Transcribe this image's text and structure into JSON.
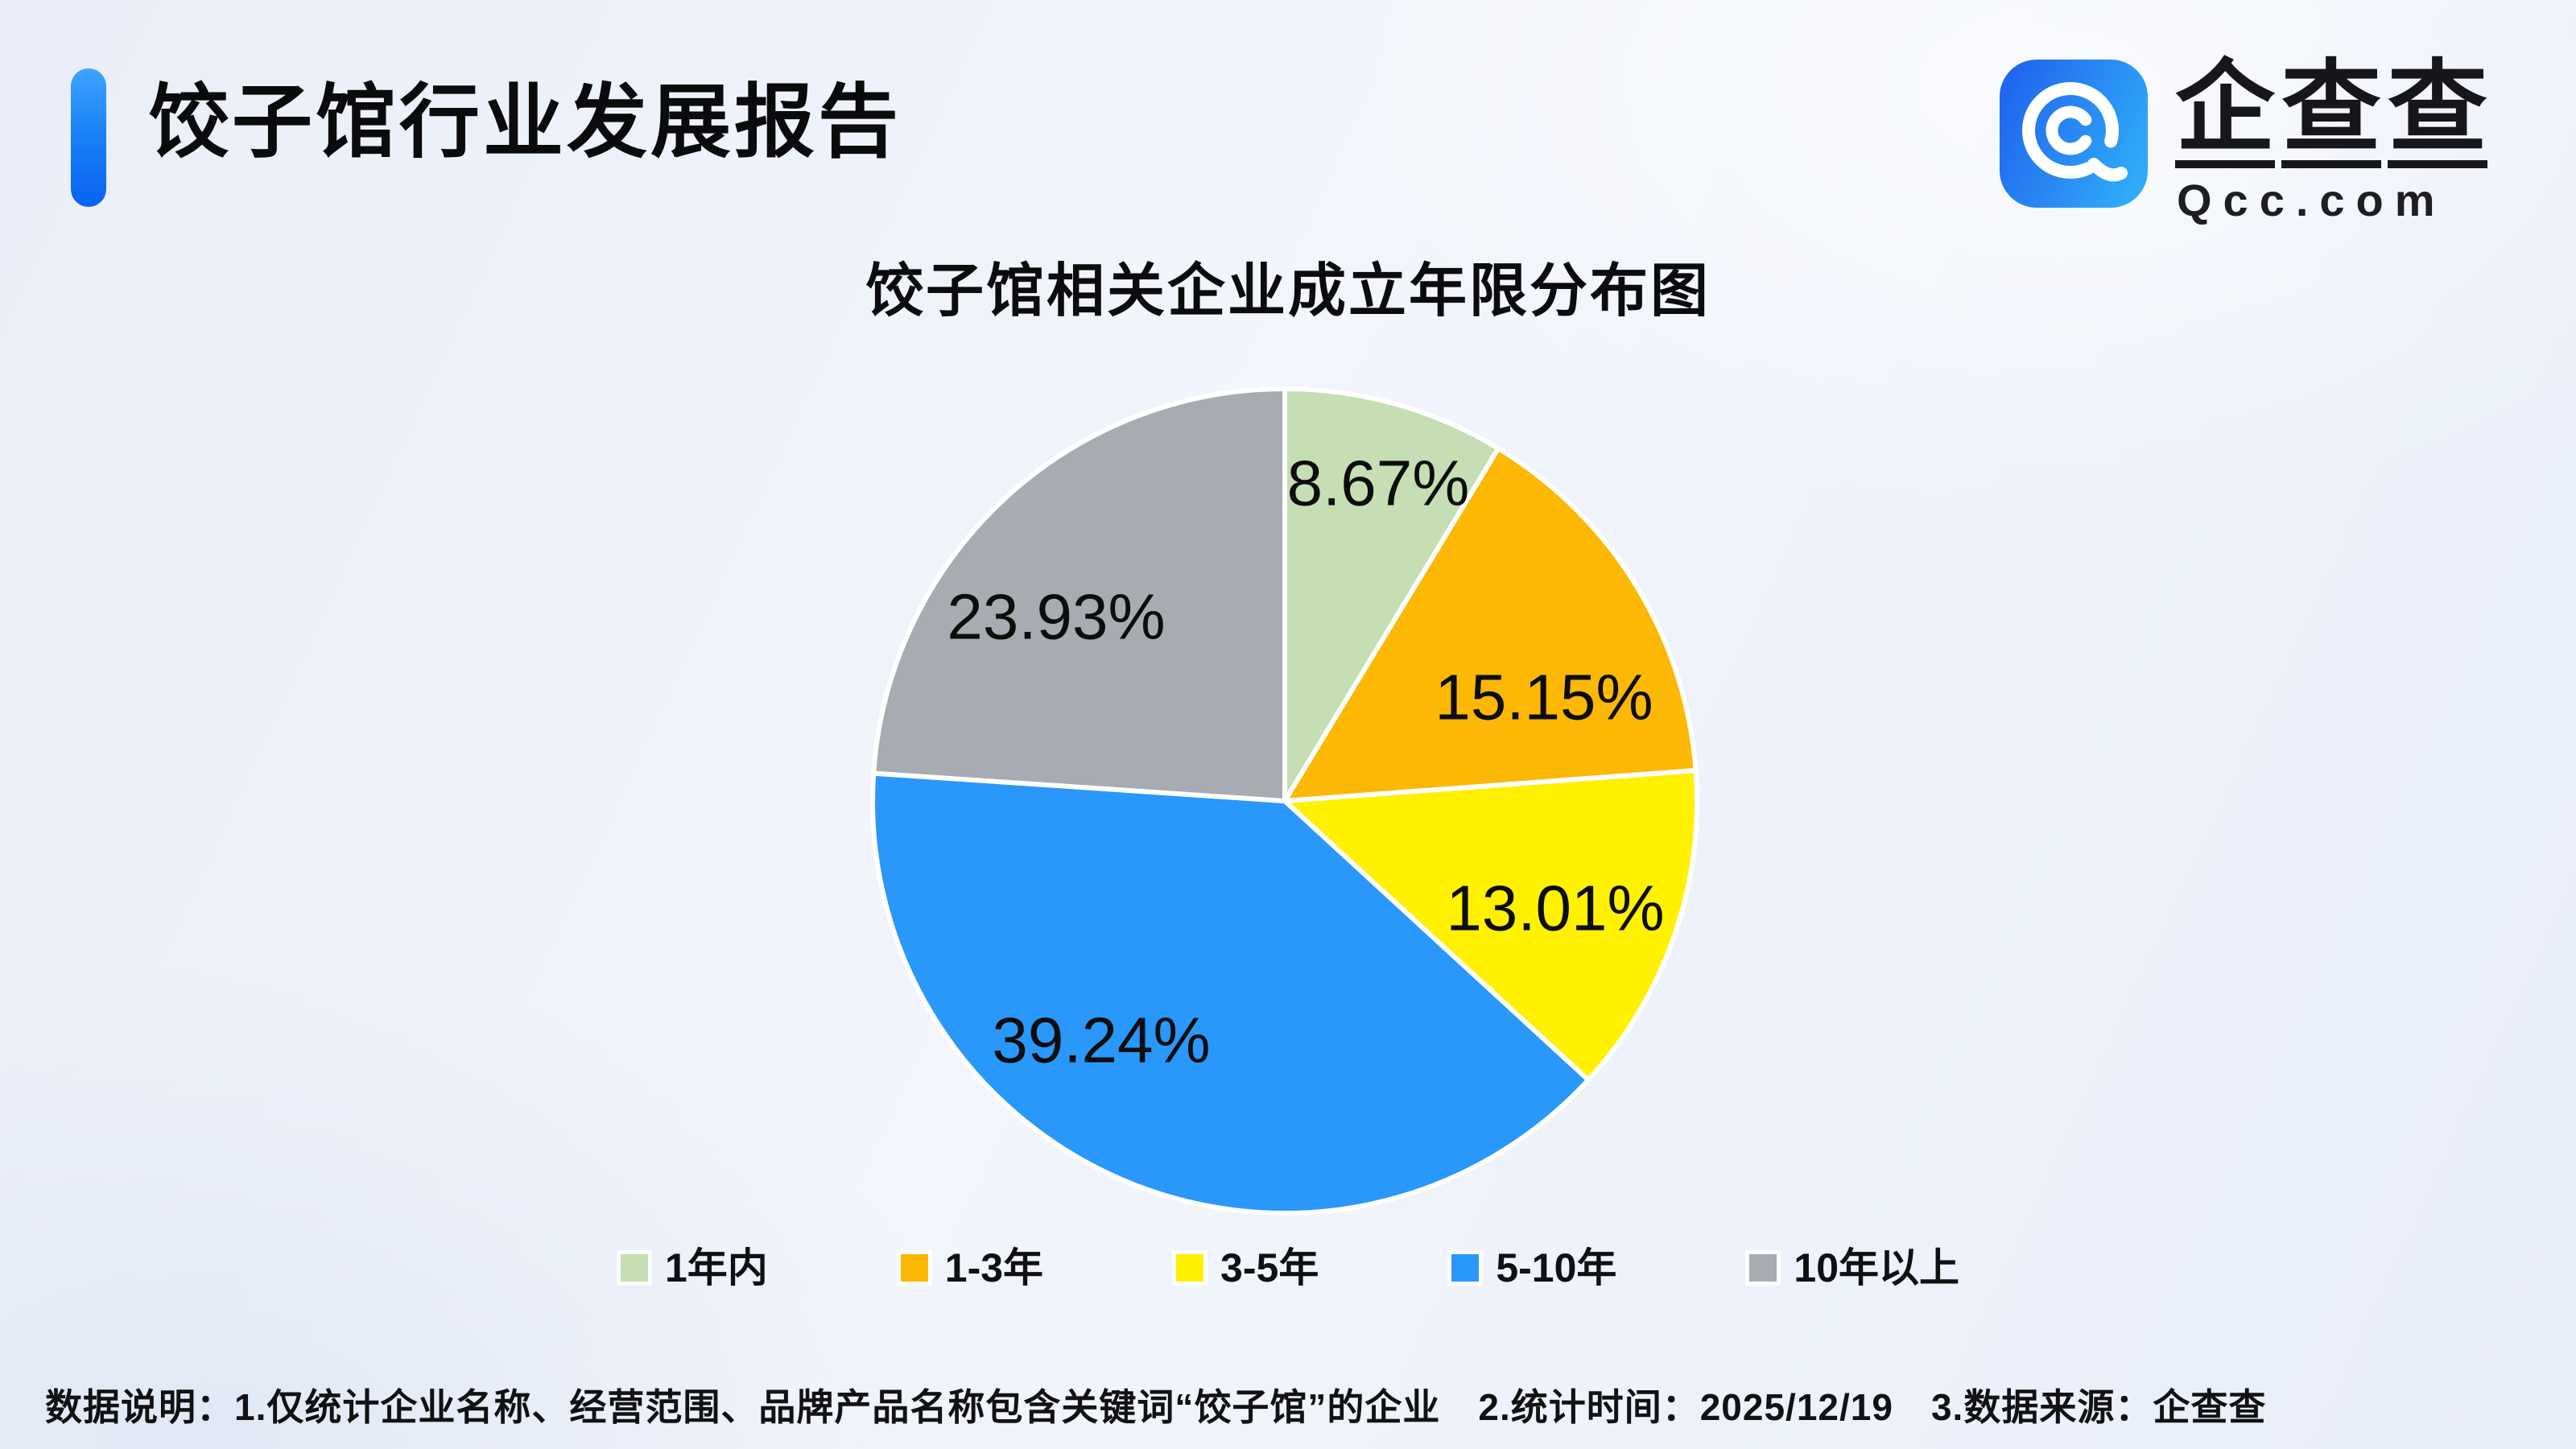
{
  "header": {
    "title": "饺子馆行业发展报告",
    "logo": {
      "brand": "企查查",
      "domain": "Qcc.com"
    }
  },
  "chart": {
    "title": "饺子馆相关企业成立年限分布图"
  },
  "chart_data": {
    "type": "pie",
    "title": "饺子馆相关企业成立年限分布图",
    "value_unit": "percent",
    "start_angle": "12-oclock",
    "direction": "clockwise",
    "legend_position": "bottom",
    "labels_inside": true,
    "series": [
      {
        "name": "1年内",
        "value": 8.67,
        "label": "8.67%",
        "color": "#C5DEB4"
      },
      {
        "name": "1-3年",
        "value": 15.15,
        "label": "15.15%",
        "color": "#FCB805"
      },
      {
        "name": "3-5年",
        "value": 13.01,
        "label": "13.01%",
        "color": "#FFF100"
      },
      {
        "name": "5-10年",
        "value": 39.24,
        "label": "39.24%",
        "color": "#2A97FA"
      },
      {
        "name": "10年以上",
        "value": 23.93,
        "label": "23.93%",
        "color": "#A7ACB2"
      }
    ]
  },
  "footer": {
    "note": "数据说明：1.仅统计企业名称、经营范围、品牌产品名称包含关键词“饺子馆”的企业　2.统计时间：2025/12/19　3.数据来源：企查查"
  },
  "colors": {
    "accent_blue": "#1777F2",
    "background": "#EFF3FA",
    "slice_border": "#FFFFFF",
    "text": "#111111"
  }
}
